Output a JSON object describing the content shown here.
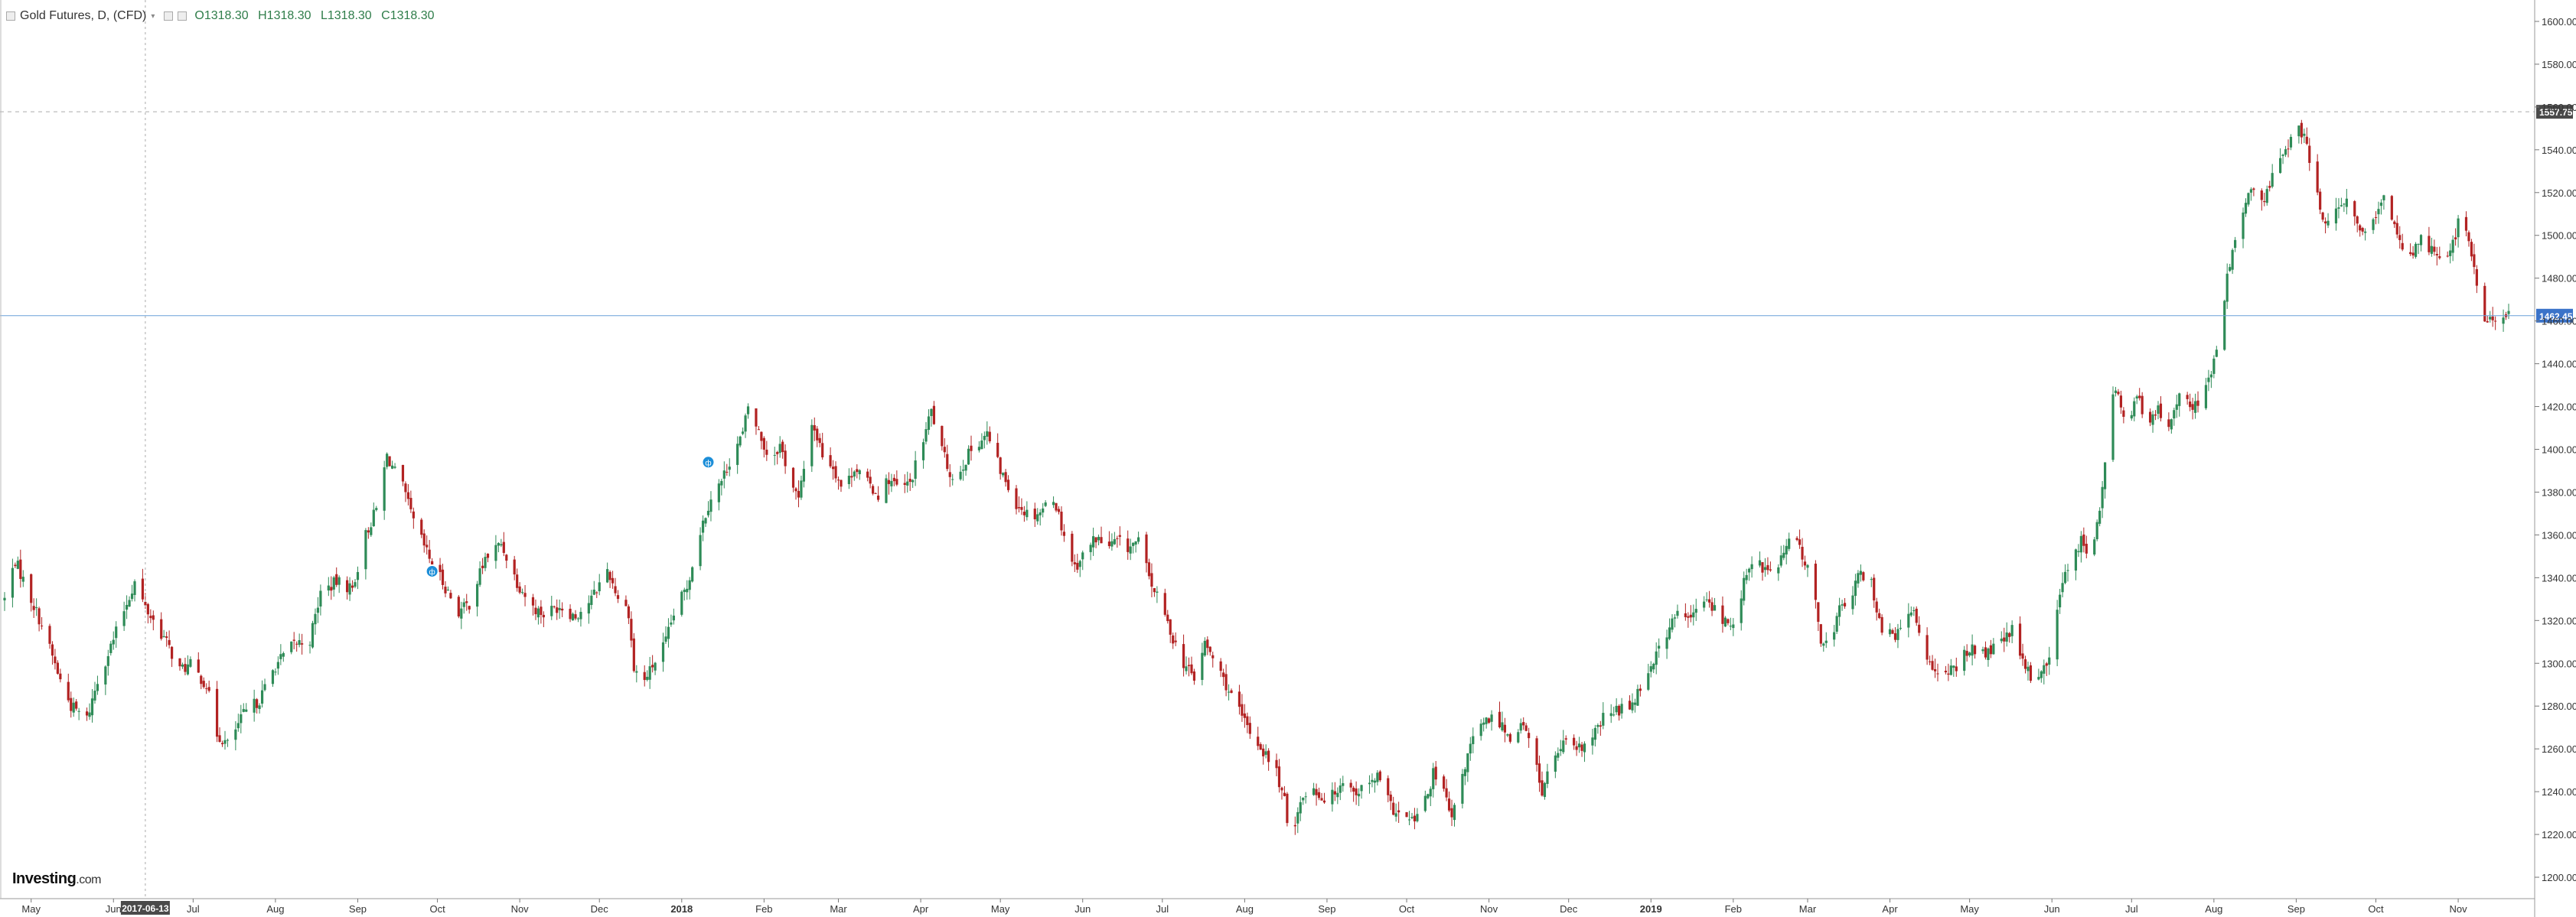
{
  "header": {
    "symbol": "Gold Futures, D, (CFD)",
    "ohlc": {
      "o": "O1318.30",
      "h": "H1318.30",
      "l": "L1318.30",
      "c": "C1318.30"
    }
  },
  "logo": {
    "main": "Investing",
    "suffix": ".com"
  },
  "colors": {
    "up": "#2e8b57",
    "down": "#b22222",
    "price_line": "#6aa0d8",
    "price_label_bg": "#3b73c9",
    "crosshair_label_bg": "#4a4a4a",
    "event_marker": "#1c8ed8",
    "grid": "#e8e8e8"
  },
  "markers": {
    "crosshair_date": "2017-06-13",
    "crosshair_price": "1557.75",
    "current_price": "1462.45",
    "event_labels": [
      "ф",
      "ф"
    ]
  },
  "chart_data": {
    "type": "candlestick",
    "title": "Gold Futures, D, (CFD)",
    "ylim": [
      1190,
      1610
    ],
    "y_ticks": [
      1200,
      1220,
      1240,
      1260,
      1280,
      1300,
      1320,
      1340,
      1360,
      1380,
      1400,
      1420,
      1440,
      1460,
      1480,
      1500,
      1520,
      1540,
      1560,
      1580,
      1600
    ],
    "x_tick_labels": [
      "May",
      "Jun",
      "Jul",
      "Aug",
      "Sep",
      "Oct",
      "Nov",
      "Dec",
      "2018",
      "Feb",
      "Mar",
      "Apr",
      "May",
      "Jun",
      "Jul",
      "Aug",
      "Sep",
      "Oct",
      "Nov",
      "Dec",
      "2019",
      "Feb",
      "Mar",
      "Apr",
      "May",
      "Jun",
      "Jul",
      "Aug",
      "Sep",
      "Oct",
      "Nov"
    ],
    "x_range": [
      "2017-04-21",
      "2019-11-20"
    ],
    "x_ticks": [
      "2017-05-01",
      "2017-06-01",
      "2017-07-01",
      "2017-08-01",
      "2017-09-01",
      "2017-10-01",
      "2017-11-01",
      "2017-12-01",
      "2018-01-01",
      "2018-02-01",
      "2018-03-01",
      "2018-04-01",
      "2018-05-01",
      "2018-06-01",
      "2018-07-01",
      "2018-08-01",
      "2018-09-01",
      "2018-10-01",
      "2018-11-01",
      "2018-12-01",
      "2019-01-01",
      "2019-02-01",
      "2019-03-01",
      "2019-04-01",
      "2019-05-01",
      "2019-06-01",
      "2019-07-01",
      "2019-08-01",
      "2019-09-01",
      "2019-10-01",
      "2019-11-01"
    ],
    "crosshair": {
      "date": "2017-06-13",
      "price": 1557.75
    },
    "current_price": 1462.45,
    "event_markers": [
      {
        "date": "2017-09-29",
        "price": 1343
      },
      {
        "date": "2018-01-11",
        "price": 1394
      }
    ],
    "close_path": [
      [
        "2017-04-21",
        1330
      ],
      [
        "2017-04-25",
        1348
      ],
      [
        "2017-05-05",
        1318
      ],
      [
        "2017-05-12",
        1292
      ],
      [
        "2017-05-16",
        1280
      ],
      [
        "2017-05-22",
        1274
      ],
      [
        "2017-05-26",
        1292
      ],
      [
        "2017-06-01",
        1311
      ],
      [
        "2017-06-05",
        1325
      ],
      [
        "2017-06-09",
        1338
      ],
      [
        "2017-06-13",
        1326
      ],
      [
        "2017-06-20",
        1312
      ],
      [
        "2017-06-26",
        1297
      ],
      [
        "2017-06-30",
        1299
      ],
      [
        "2017-07-06",
        1290
      ],
      [
        "2017-07-10",
        1267
      ],
      [
        "2017-07-14",
        1262
      ],
      [
        "2017-07-20",
        1276
      ],
      [
        "2017-07-26",
        1283
      ],
      [
        "2017-08-01",
        1299
      ],
      [
        "2017-08-08",
        1309
      ],
      [
        "2017-08-14",
        1311
      ],
      [
        "2017-08-18",
        1333
      ],
      [
        "2017-08-24",
        1338
      ],
      [
        "2017-08-30",
        1335
      ],
      [
        "2017-09-04",
        1360
      ],
      [
        "2017-09-08",
        1372
      ],
      [
        "2017-09-12",
        1397
      ],
      [
        "2017-09-18",
        1382
      ],
      [
        "2017-09-22",
        1366
      ],
      [
        "2017-09-28",
        1349
      ],
      [
        "2017-10-03",
        1338
      ],
      [
        "2017-10-09",
        1324
      ],
      [
        "2017-10-13",
        1328
      ],
      [
        "2017-10-19",
        1349
      ],
      [
        "2017-10-25",
        1356
      ],
      [
        "2017-10-31",
        1338
      ],
      [
        "2017-11-06",
        1326
      ],
      [
        "2017-11-10",
        1323
      ],
      [
        "2017-11-16",
        1327
      ],
      [
        "2017-11-22",
        1322
      ],
      [
        "2017-11-28",
        1330
      ],
      [
        "2017-12-04",
        1344
      ],
      [
        "2017-12-08",
        1331
      ],
      [
        "2017-12-12",
        1324
      ],
      [
        "2017-12-14",
        1297
      ],
      [
        "2017-12-18",
        1292
      ],
      [
        "2017-12-26",
        1310
      ],
      [
        "2017-12-29",
        1323
      ],
      [
        "2018-01-03",
        1336
      ],
      [
        "2018-01-08",
        1362
      ],
      [
        "2018-01-12",
        1378
      ],
      [
        "2018-01-16",
        1385
      ],
      [
        "2018-01-20",
        1398
      ],
      [
        "2018-01-24",
        1407
      ],
      [
        "2018-01-26",
        1420
      ],
      [
        "2018-01-30",
        1408
      ],
      [
        "2018-02-03",
        1395
      ],
      [
        "2018-02-07",
        1402
      ],
      [
        "2018-02-11",
        1386
      ],
      [
        "2018-02-14",
        1376
      ],
      [
        "2018-02-19",
        1413
      ],
      [
        "2018-02-23",
        1398
      ],
      [
        "2018-02-27",
        1392
      ],
      [
        "2018-03-03",
        1380
      ],
      [
        "2018-03-07",
        1392
      ],
      [
        "2018-03-12",
        1384
      ],
      [
        "2018-03-16",
        1379
      ],
      [
        "2018-03-20",
        1386
      ],
      [
        "2018-03-24",
        1381
      ],
      [
        "2018-03-28",
        1384
      ],
      [
        "2018-04-01",
        1400
      ],
      [
        "2018-04-05",
        1418
      ],
      [
        "2018-04-09",
        1399
      ],
      [
        "2018-04-13",
        1386
      ],
      [
        "2018-04-17",
        1393
      ],
      [
        "2018-04-21",
        1402
      ],
      [
        "2018-04-26",
        1407
      ],
      [
        "2018-05-01",
        1390
      ],
      [
        "2018-05-07",
        1375
      ],
      [
        "2018-05-12",
        1369
      ],
      [
        "2018-05-16",
        1371
      ],
      [
        "2018-05-21",
        1378
      ],
      [
        "2018-05-25",
        1360
      ],
      [
        "2018-05-29",
        1345
      ],
      [
        "2018-06-02",
        1352
      ],
      [
        "2018-06-06",
        1359
      ],
      [
        "2018-06-10",
        1354
      ],
      [
        "2018-06-14",
        1357
      ],
      [
        "2018-06-18",
        1354
      ],
      [
        "2018-06-22",
        1357
      ],
      [
        "2018-06-26",
        1340
      ],
      [
        "2018-07-01",
        1325
      ],
      [
        "2018-07-05",
        1312
      ],
      [
        "2018-07-09",
        1300
      ],
      [
        "2018-07-13",
        1293
      ],
      [
        "2018-07-17",
        1309
      ],
      [
        "2018-07-21",
        1300
      ],
      [
        "2018-07-25",
        1290
      ],
      [
        "2018-07-29",
        1279
      ],
      [
        "2018-08-03",
        1268
      ],
      [
        "2018-08-08",
        1259
      ],
      [
        "2018-08-13",
        1249
      ],
      [
        "2018-08-16",
        1235
      ],
      [
        "2018-08-18",
        1216
      ],
      [
        "2018-08-21",
        1232
      ],
      [
        "2018-08-26",
        1244
      ],
      [
        "2018-08-30",
        1237
      ],
      [
        "2018-09-03",
        1238
      ],
      [
        "2018-09-07",
        1246
      ],
      [
        "2018-09-11",
        1240
      ],
      [
        "2018-09-16",
        1242
      ],
      [
        "2018-09-20",
        1247
      ],
      [
        "2018-09-25",
        1233
      ],
      [
        "2018-09-29",
        1228
      ],
      [
        "2018-10-03",
        1226
      ],
      [
        "2018-10-07",
        1231
      ],
      [
        "2018-10-11",
        1248
      ],
      [
        "2018-10-15",
        1240
      ],
      [
        "2018-10-18",
        1226
      ],
      [
        "2018-10-22",
        1248
      ],
      [
        "2018-10-26",
        1265
      ],
      [
        "2018-11-01",
        1274
      ],
      [
        "2018-11-05",
        1273
      ],
      [
        "2018-11-09",
        1265
      ],
      [
        "2018-11-13",
        1272
      ],
      [
        "2018-11-17",
        1262
      ],
      [
        "2018-11-21",
        1240
      ],
      [
        "2018-11-25",
        1255
      ],
      [
        "2018-11-29",
        1262
      ],
      [
        "2018-12-04",
        1259
      ],
      [
        "2018-12-09",
        1263
      ],
      [
        "2018-12-14",
        1274
      ],
      [
        "2018-12-19",
        1278
      ],
      [
        "2018-12-24",
        1280
      ],
      [
        "2018-12-28",
        1289
      ],
      [
        "2019-01-02",
        1302
      ],
      [
        "2019-01-05",
        1309
      ],
      [
        "2019-01-08",
        1317
      ],
      [
        "2019-01-12",
        1325
      ],
      [
        "2019-01-16",
        1320
      ],
      [
        "2019-01-20",
        1330
      ],
      [
        "2019-01-24",
        1327
      ],
      [
        "2019-01-28",
        1320
      ],
      [
        "2019-02-01",
        1317
      ],
      [
        "2019-02-05",
        1338
      ],
      [
        "2019-02-09",
        1348
      ],
      [
        "2019-02-13",
        1344
      ],
      [
        "2019-02-17",
        1342
      ],
      [
        "2019-02-20",
        1352
      ],
      [
        "2019-02-24",
        1360
      ],
      [
        "2019-02-28",
        1348
      ],
      [
        "2019-03-03",
        1334
      ],
      [
        "2019-03-06",
        1312
      ],
      [
        "2019-03-09",
        1308
      ],
      [
        "2019-03-13",
        1325
      ],
      [
        "2019-03-17",
        1331
      ],
      [
        "2019-03-21",
        1342
      ],
      [
        "2019-03-25",
        1337
      ],
      [
        "2019-03-29",
        1316
      ],
      [
        "2019-04-02",
        1312
      ],
      [
        "2019-04-06",
        1317
      ],
      [
        "2019-04-10",
        1325
      ],
      [
        "2019-04-14",
        1305
      ],
      [
        "2019-04-18",
        1298
      ],
      [
        "2019-04-22",
        1294
      ],
      [
        "2019-04-26",
        1298
      ],
      [
        "2019-05-01",
        1308
      ],
      [
        "2019-05-05",
        1303
      ],
      [
        "2019-05-09",
        1306
      ],
      [
        "2019-05-13",
        1310
      ],
      [
        "2019-05-17",
        1315
      ],
      [
        "2019-05-21",
        1300
      ],
      [
        "2019-05-25",
        1292
      ],
      [
        "2019-05-30",
        1300
      ],
      [
        "2019-06-02",
        1315
      ],
      [
        "2019-06-05",
        1338
      ],
      [
        "2019-06-08",
        1350
      ],
      [
        "2019-06-12",
        1357
      ],
      [
        "2019-06-16",
        1350
      ],
      [
        "2019-06-19",
        1370
      ],
      [
        "2019-06-22",
        1410
      ],
      [
        "2019-06-25",
        1430
      ],
      [
        "2019-06-29",
        1412
      ],
      [
        "2019-07-03",
        1425
      ],
      [
        "2019-07-07",
        1410
      ],
      [
        "2019-07-11",
        1418
      ],
      [
        "2019-07-15",
        1412
      ],
      [
        "2019-07-19",
        1428
      ],
      [
        "2019-07-23",
        1418
      ],
      [
        "2019-07-27",
        1425
      ],
      [
        "2019-07-31",
        1435
      ],
      [
        "2019-08-03",
        1450
      ],
      [
        "2019-08-06",
        1480
      ],
      [
        "2019-08-09",
        1500
      ],
      [
        "2019-08-13",
        1515
      ],
      [
        "2019-08-16",
        1522
      ],
      [
        "2019-08-20",
        1515
      ],
      [
        "2019-08-24",
        1532
      ],
      [
        "2019-08-28",
        1540
      ],
      [
        "2019-09-01",
        1552
      ],
      [
        "2019-09-04",
        1545
      ],
      [
        "2019-09-06",
        1535
      ],
      [
        "2019-09-09",
        1518
      ],
      [
        "2019-09-12",
        1506
      ],
      [
        "2019-09-16",
        1510
      ],
      [
        "2019-09-20",
        1515
      ],
      [
        "2019-09-24",
        1505
      ],
      [
        "2019-09-28",
        1500
      ],
      [
        "2019-10-02",
        1510
      ],
      [
        "2019-10-05",
        1520
      ],
      [
        "2019-10-08",
        1505
      ],
      [
        "2019-10-11",
        1494
      ],
      [
        "2019-10-14",
        1492
      ],
      [
        "2019-10-18",
        1498
      ],
      [
        "2019-10-22",
        1494
      ],
      [
        "2019-10-26",
        1490
      ],
      [
        "2019-10-30",
        1496
      ],
      [
        "2019-11-02",
        1510
      ],
      [
        "2019-11-06",
        1492
      ],
      [
        "2019-11-09",
        1468
      ],
      [
        "2019-11-12",
        1458
      ],
      [
        "2019-11-16",
        1464
      ],
      [
        "2019-11-20",
        1462
      ]
    ]
  }
}
